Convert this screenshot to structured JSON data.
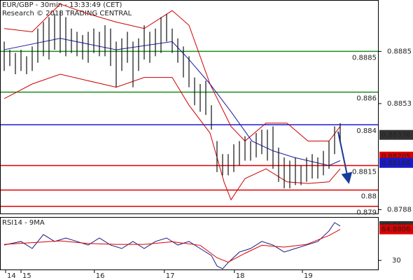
{
  "chart_data": {
    "type": "ohlc",
    "title": "EUR/GBP - 30min - 13:33:49 (CET)",
    "subtitle": "Research © 2018 TRADING CENTRAL",
    "xlim": [
      -0.75,
      66.75
    ],
    "xticks": [
      {
        "value": 0.25,
        "label": "14"
      },
      {
        "value": 3,
        "label": "15"
      },
      {
        "value": 16.1,
        "label": "16"
      },
      {
        "value": 28.6,
        "label": "17"
      },
      {
        "value": 41.1,
        "label": "18"
      },
      {
        "value": 53.25,
        "label": "19"
      }
    ],
    "ylim": [
      0.87856,
      0.89165
    ],
    "yticks": [
      0.8788,
      0.8853,
      0.8885
    ],
    "high": [
      0.8891,
      0.8886,
      0.8884,
      0.8886,
      0.8882,
      0.8888,
      0.8899,
      0.8903,
      0.8906,
      0.8908,
      0.891,
      0.8906,
      0.8899,
      0.8897,
      0.8895,
      0.8897,
      0.8899,
      0.8897,
      0.8901,
      0.8899,
      0.8891,
      0.8893,
      0.8897,
      0.8891,
      0.8893,
      0.8901,
      0.8897,
      0.8899,
      0.8906,
      0.8908,
      0.8899,
      0.8893,
      0.8888,
      0.8882,
      0.8869,
      0.8865,
      0.8867,
      0.8852,
      0.883,
      0.8822,
      0.8822,
      0.8828,
      0.883,
      0.8833,
      0.883,
      0.8835,
      0.8837,
      0.8837,
      0.8839,
      0.8826,
      0.882,
      0.8818,
      0.882,
      0.8815,
      0.882,
      0.8822,
      0.882,
      0.8824,
      0.883,
      0.8839,
      0.8841
    ],
    "low": [
      0.8873,
      0.8876,
      0.8871,
      0.8873,
      0.8871,
      0.8873,
      0.8878,
      0.8882,
      0.888,
      0.8886,
      0.8884,
      0.8882,
      0.8884,
      0.8882,
      0.888,
      0.8878,
      0.8884,
      0.8882,
      0.8882,
      0.8876,
      0.8863,
      0.8873,
      0.8878,
      0.8863,
      0.8873,
      0.888,
      0.8878,
      0.8882,
      0.8884,
      0.8891,
      0.8884,
      0.8878,
      0.8869,
      0.8863,
      0.8852,
      0.8848,
      0.8846,
      0.8837,
      0.8811,
      0.8809,
      0.8809,
      0.8811,
      0.8815,
      0.8818,
      0.8818,
      0.882,
      0.8822,
      0.8818,
      0.8813,
      0.8805,
      0.8801,
      0.8801,
      0.8803,
      0.8803,
      0.8805,
      0.8807,
      0.8807,
      0.8809,
      0.8813,
      0.8822,
      0.883
    ],
    "series": [
      {
        "color": "#cc0000",
        "x": [
          0,
          5,
          10,
          15,
          20,
          25,
          30,
          33,
          36.75,
          40.5,
          43,
          46.75,
          50.5,
          54.25,
          58,
          60
        ],
        "values": [
          0.8899,
          0.8897,
          0.8914,
          0.8908,
          0.8903,
          0.8899,
          0.891,
          0.8901,
          0.8865,
          0.8839,
          0.883,
          0.8841,
          0.8841,
          0.883,
          0.883,
          0.8839
        ]
      },
      {
        "color": "#cc0000",
        "x": [
          0,
          5,
          10,
          15,
          20,
          25,
          30,
          33,
          36.75,
          39.25,
          40.5,
          43,
          46.75,
          50.5,
          54.25,
          58,
          60
        ],
        "values": [
          0.8856,
          0.8865,
          0.8871,
          0.8867,
          0.8863,
          0.8869,
          0.8869,
          0.8852,
          0.8835,
          0.8805,
          0.8794,
          0.8807,
          0.8813,
          0.8805,
          0.8804,
          0.8805,
          0.8813
        ]
      },
      {
        "color": "#1a1aa0",
        "x": [
          0,
          10,
          20,
          30,
          33,
          36.75,
          40.5,
          44.25,
          48,
          51.75,
          55.5,
          58,
          60
        ],
        "values": [
          0.8886,
          0.8893,
          0.8886,
          0.8891,
          0.888,
          0.8865,
          0.8848,
          0.883,
          0.8824,
          0.882,
          0.8817,
          0.8815,
          0.8818
        ]
      }
    ],
    "levels": [
      {
        "value": 0.8885,
        "color": "#1e8c1e"
      },
      {
        "value": 0.886,
        "color": "#1e8c1e"
      },
      {
        "value": 0.884,
        "color": "#1a1ad0"
      },
      {
        "value": 0.8815,
        "color": "#dd0000"
      },
      {
        "value": 0.88,
        "color": "#dd0000"
      },
      {
        "value": 0.879,
        "color": "#dd0000"
      }
    ],
    "price_boxes": [
      {
        "value": 0.88338,
        "color": "#333333"
      },
      {
        "value": 0.88205,
        "color": "#dd0000"
      },
      {
        "value": 0.88166,
        "color": "#1a1ad0"
      }
    ],
    "rsi": {
      "label": "RSI14 - 9MA",
      "ylim": [
        19.8,
        78.8
      ],
      "yticks": [
        30
      ],
      "series": [
        {
          "color": "#1a1a80",
          "x": [
            0,
            3,
            5,
            7,
            9,
            11,
            13,
            15,
            17,
            19,
            21,
            23,
            25,
            27,
            29,
            31,
            33,
            35,
            37,
            38,
            39,
            40,
            42,
            44,
            46,
            48,
            50,
            52,
            54,
            56,
            58,
            59,
            60
          ],
          "values": [
            47.3,
            51.3,
            43.4,
            59.1,
            51.3,
            55.2,
            51.3,
            47.3,
            55.2,
            47.3,
            43.4,
            51.3,
            43.4,
            51.3,
            55.2,
            47.3,
            51.3,
            43.4,
            35.5,
            23.7,
            20.6,
            27.6,
            39.4,
            43.4,
            51.3,
            47.3,
            39.4,
            43.4,
            47.3,
            51.3,
            63.1,
            72.5,
            68.6
          ]
        },
        {
          "color": "#dd0000",
          "x": [
            0,
            5,
            10,
            15,
            20,
            25,
            30,
            35,
            38,
            40,
            43,
            46,
            50,
            54,
            58,
            60
          ],
          "values": [
            48,
            50,
            52,
            49,
            48,
            48,
            51,
            47,
            33,
            28,
            38,
            47,
            45,
            48,
            58,
            64.9
          ]
        }
      ],
      "boxes": [
        {
          "value": 68.604,
          "color": "#333333"
        },
        {
          "value": 64.8806,
          "color": "#dd0000"
        }
      ]
    }
  }
}
